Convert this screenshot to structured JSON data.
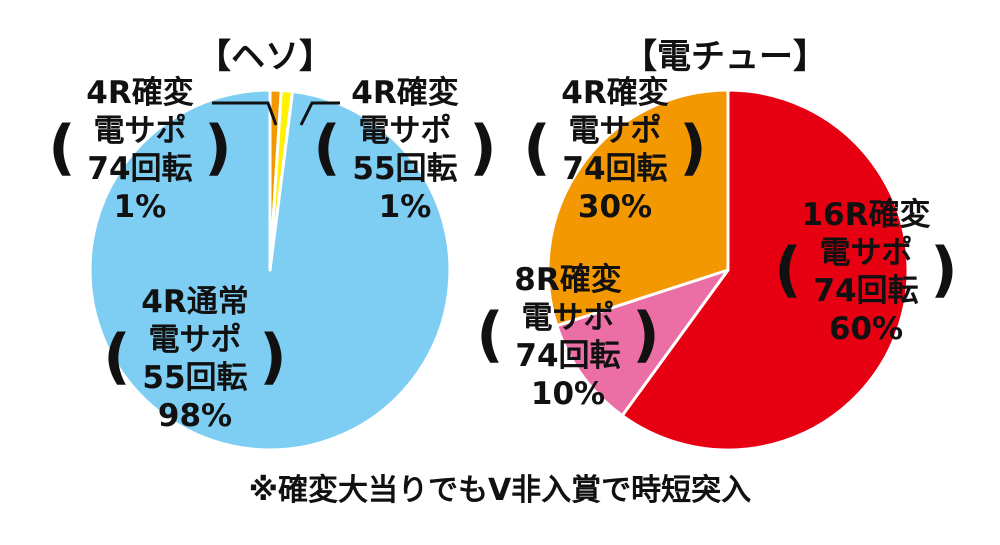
{
  "chart_data": [
    {
      "type": "pie",
      "title": "【ヘソ】",
      "slices": [
        {
          "lines": [
            "4R確変",
            "電サポ",
            "74回転",
            "1%"
          ],
          "value": 1,
          "color": "#f39800",
          "outline": "#f39800"
        },
        {
          "lines": [
            "4R確変",
            "電サポ",
            "55回転",
            "1%"
          ],
          "value": 1,
          "color": "#fff100",
          "outline": "#fff100"
        },
        {
          "lines": [
            "4R通常",
            "電サポ",
            "55回転",
            "98%"
          ],
          "value": 98,
          "color": "#7ecef4",
          "outline": "#7ecef4"
        }
      ]
    },
    {
      "type": "pie",
      "title": "【電チュー】",
      "slices": [
        {
          "lines": [
            "16R確変",
            "電サポ",
            "74回転",
            "60%"
          ],
          "value": 60,
          "color": "#e60012",
          "outline": "#e60012"
        },
        {
          "lines": [
            "8R確変",
            "電サポ",
            "74回転",
            "10%"
          ],
          "value": 10,
          "color": "#eb6ea5",
          "outline": "#eb6ea5"
        },
        {
          "lines": [
            "4R確変",
            "電サポ",
            "74回転",
            "30%"
          ],
          "value": 30,
          "color": "#f39800",
          "outline": "#f39800"
        }
      ]
    }
  ],
  "footnote": "※確変大当りでもV非入賞で時短突入"
}
